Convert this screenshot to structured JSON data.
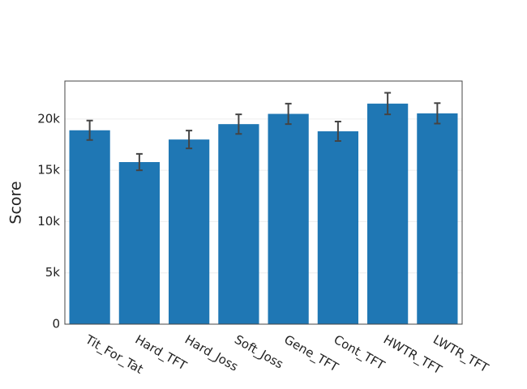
{
  "chart_data": {
    "type": "bar",
    "y_label": "Score",
    "categories": [
      "Tit_For_Tat",
      "Hard_TFT",
      "Hard_Joss",
      "Soft_Joss",
      "Gene_TFT",
      "Cont_TFT",
      "HWTR_TFT",
      "LWTR_TFT"
    ],
    "values": [
      18900,
      15800,
      18000,
      19500,
      20500,
      18800,
      21500,
      20550
    ],
    "errors": [
      950,
      800,
      870,
      950,
      1000,
      950,
      1050,
      1000
    ],
    "color": "#1f77b4",
    "ylim": [
      0,
      23700
    ],
    "yticks": [
      0,
      {
        "value": 5000,
        "label": "5k"
      },
      {
        "value": 10000,
        "label": "10k"
      },
      {
        "value": 15000,
        "label": "15k"
      },
      {
        "value": 20000,
        "label": "20k"
      }
    ],
    "grid": true
  }
}
